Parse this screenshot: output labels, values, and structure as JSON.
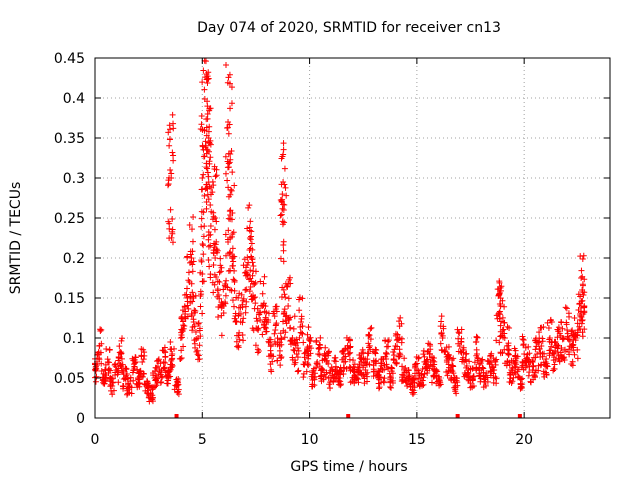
{
  "chart_data": {
    "type": "scatter",
    "title": "Day 074 of 2020, SRMTID for receiver cn13",
    "xlabel": "GPS time / hours",
    "ylabel": "SRMTID / TECUs",
    "xlim": [
      0,
      24
    ],
    "ylim": [
      0,
      0.45
    ],
    "xticks": [
      0,
      5,
      10,
      15,
      20
    ],
    "yticks": [
      0,
      0.05,
      0.1,
      0.15,
      0.2,
      0.25,
      0.3,
      0.35,
      0.4,
      0.45
    ],
    "xtick_labels": [
      "0",
      "5",
      "10",
      "15",
      "20"
    ],
    "ytick_labels": [
      "0",
      "0.05",
      "0.1",
      "0.15",
      "0.2",
      "0.25",
      "0.3",
      "0.35",
      "0.4",
      "0.45"
    ],
    "grid": true,
    "marker": "+",
    "color": "#ff0000",
    "series": [
      {
        "name": "SRMTID",
        "x": [
          0.0,
          0.2,
          0.4,
          0.6,
          0.8,
          1.0,
          1.2,
          1.4,
          1.6,
          1.8,
          2.0,
          2.2,
          2.4,
          2.6,
          2.8,
          3.0,
          3.2,
          3.4,
          3.6,
          3.8,
          4.0,
          4.2,
          4.4,
          4.6,
          4.8,
          5.0,
          5.2,
          5.4,
          5.6,
          5.8,
          6.0,
          6.2,
          6.4,
          6.6,
          6.8,
          7.0,
          7.2,
          7.4,
          7.6,
          7.8,
          8.0,
          8.2,
          8.4,
          8.6,
          8.8,
          9.0,
          9.2,
          9.4,
          9.6,
          9.8,
          10.0,
          10.2,
          10.4,
          10.6,
          10.8,
          11.0,
          11.2,
          11.4,
          11.6,
          11.8,
          12.0,
          12.2,
          12.4,
          12.6,
          12.8,
          13.0,
          13.2,
          13.4,
          13.6,
          13.8,
          14.0,
          14.2,
          14.4,
          14.6,
          14.8,
          15.0,
          15.2,
          15.4,
          15.6,
          15.8,
          16.0,
          16.2,
          16.4,
          16.6,
          16.8,
          17.0,
          17.2,
          17.4,
          17.6,
          17.8,
          18.0,
          18.2,
          18.4,
          18.6,
          18.8,
          19.0,
          19.2,
          19.4,
          19.6,
          19.8,
          20.0,
          20.2,
          20.4,
          20.6,
          20.8,
          21.0,
          21.2,
          21.4,
          21.6,
          21.8,
          22.0,
          22.2,
          22.4,
          22.6,
          22.8,
          3.5,
          3.55,
          5.1,
          5.2,
          5.25,
          5.3,
          6.2,
          6.3,
          8.7,
          8.8,
          18.9,
          22.7,
          4.5,
          5.0,
          5.6,
          6.4,
          7.3
        ],
        "y": [
          0.06,
          0.09,
          0.05,
          0.07,
          0.04,
          0.06,
          0.08,
          0.05,
          0.04,
          0.06,
          0.05,
          0.07,
          0.04,
          0.03,
          0.05,
          0.06,
          0.07,
          0.05,
          0.08,
          0.04,
          0.1,
          0.13,
          0.17,
          0.12,
          0.1,
          0.18,
          0.27,
          0.24,
          0.2,
          0.17,
          0.14,
          0.22,
          0.19,
          0.12,
          0.13,
          0.16,
          0.21,
          0.15,
          0.11,
          0.14,
          0.12,
          0.08,
          0.11,
          0.09,
          0.13,
          0.14,
          0.1,
          0.08,
          0.12,
          0.07,
          0.09,
          0.05,
          0.08,
          0.06,
          0.07,
          0.05,
          0.06,
          0.05,
          0.07,
          0.08,
          0.06,
          0.05,
          0.07,
          0.06,
          0.09,
          0.07,
          0.05,
          0.06,
          0.08,
          0.05,
          0.09,
          0.1,
          0.06,
          0.05,
          0.04,
          0.06,
          0.05,
          0.07,
          0.08,
          0.06,
          0.05,
          0.1,
          0.07,
          0.06,
          0.04,
          0.09,
          0.07,
          0.06,
          0.05,
          0.08,
          0.06,
          0.05,
          0.07,
          0.06,
          0.13,
          0.11,
          0.09,
          0.06,
          0.07,
          0.05,
          0.08,
          0.07,
          0.06,
          0.08,
          0.09,
          0.07,
          0.1,
          0.08,
          0.09,
          0.1,
          0.11,
          0.09,
          0.1,
          0.13,
          0.14,
          0.31,
          0.3,
          0.36,
          0.43,
          0.38,
          0.35,
          0.37,
          0.33,
          0.27,
          0.26,
          0.14,
          0.16,
          0.2,
          0.3,
          0.25,
          0.23,
          0.2
        ]
      }
    ],
    "x_axis_markers": [
      3.8,
      11.8,
      16.9,
      19.8
    ]
  }
}
